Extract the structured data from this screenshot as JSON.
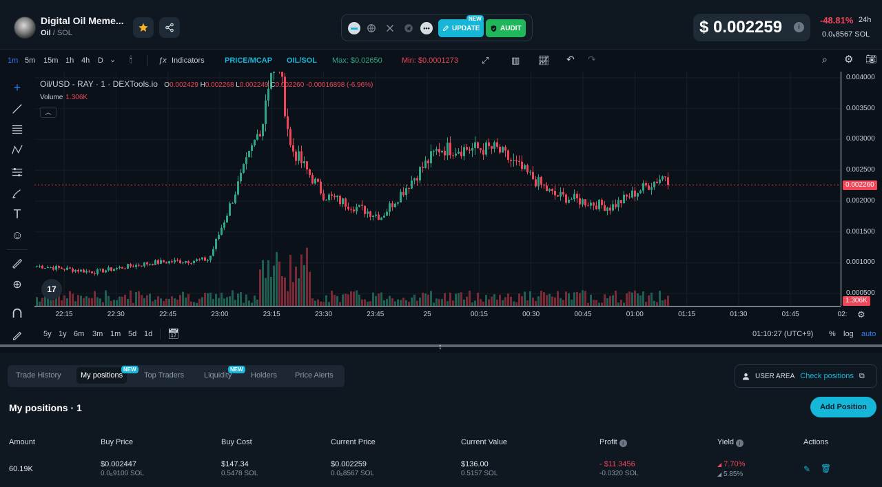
{
  "header": {
    "token_name": "Digital Oil Meme...",
    "pair_base": "Oil",
    "pair_quote": "/ SOL",
    "update_label": "UPDATE",
    "update_new": "NEW",
    "audit_label": "AUDIT",
    "price": "$ 0.002259",
    "change": "-48.81%",
    "change_period": "24h",
    "sol_price": "0.0₅8567  SOL",
    "icons": [
      "star-icon",
      "share-icon",
      "globe-icon",
      "x-icon",
      "telegram-icon",
      "more-icon",
      "edit-icon",
      "shield-icon",
      "info-icon"
    ],
    "colors": {
      "accent": "#15b6d8",
      "down": "#f0465a",
      "up": "#2fa686"
    }
  },
  "toolbar": {
    "intervals": [
      "1m",
      "5m",
      "15m",
      "1h",
      "4h",
      "D"
    ],
    "active_interval": "1m",
    "indicators": "Indicators",
    "price_mcap": "PRICE/MCAP",
    "pair": "OIL/SOL",
    "max": "Max: $0.02650",
    "min": "Min: $0.0001273"
  },
  "chart": {
    "legend_title": "Oil/USD - RAY · 1 · DEXTools.io",
    "ohlc": {
      "o": "0.002429",
      "h": "0.002268",
      "l": "0.002249",
      "c": "0.002260",
      "chg": "-0.00016898 (-6.96%)"
    },
    "volume_label": "Volume",
    "volume_value": "1.306K",
    "price_ticks": [
      "0.004000",
      "0.003500",
      "0.003000",
      "0.002500",
      "0.002000",
      "0.001500",
      "0.001000",
      "0.000500"
    ],
    "last_price": "0.002260",
    "volume_tag": "1.306K",
    "time_ticks": [
      "22:15",
      "22:30",
      "22:45",
      "23:00",
      "23:15",
      "23:30",
      "23:45",
      "25",
      "00:15",
      "00:30",
      "00:45",
      "01:00",
      "01:15",
      "01:30",
      "01:45",
      "02:"
    ]
  },
  "chart_data": {
    "type": "candlestick",
    "title": "Oil/USD - RAY · 1 · DEXTools.io",
    "ylim": [
      0.0003,
      0.0041
    ],
    "x": [
      "22:15",
      "22:30",
      "22:45",
      "23:00",
      "23:15",
      "23:30",
      "23:45",
      "00:00",
      "00:15",
      "00:30",
      "00:45",
      "01:00"
    ],
    "close": [
      0.00095,
      0.00085,
      0.001,
      0.00105,
      0.00345,
      0.0021,
      0.00175,
      0.00285,
      0.00285,
      0.0021,
      0.0019,
      0.00245
    ],
    "last": 0.00226,
    "grid": true
  },
  "range": {
    "options": [
      "5y",
      "1y",
      "6m",
      "3m",
      "1m",
      "5d",
      "1d"
    ],
    "clock": "01:10:27 (UTC+9)",
    "pct": "%",
    "log": "log",
    "auto": "auto"
  },
  "panel": {
    "tabs": [
      "Trade History",
      "My positions",
      "Top Traders",
      "Liquidity",
      "Holders",
      "Price Alerts"
    ],
    "new_tag": "NEW",
    "user_area": "USER AREA",
    "check_positions": "Check positions",
    "title": "My positions · 1",
    "add_position": "Add Position",
    "columns": [
      "Amount",
      "Buy Price",
      "Buy Cost",
      "Current Price",
      "Current Value",
      "Profit",
      "Yield",
      "Actions"
    ],
    "row": {
      "amount": "60.19K",
      "buy_price": "$0.002447",
      "buy_price_sol": "0.0₅9100 SOL",
      "buy_cost": "$147.34",
      "buy_cost_sol": "0.5478 SOL",
      "current_price": "$0.002259",
      "current_price_sol": "0.0₅8567 SOL",
      "current_value": "$136.00",
      "current_value_sol": "0.5157 SOL",
      "profit": "- $11.3456",
      "profit_sol": "-0.0320 SOL",
      "yield1": "7.70%",
      "yield2": "5.85%"
    }
  }
}
